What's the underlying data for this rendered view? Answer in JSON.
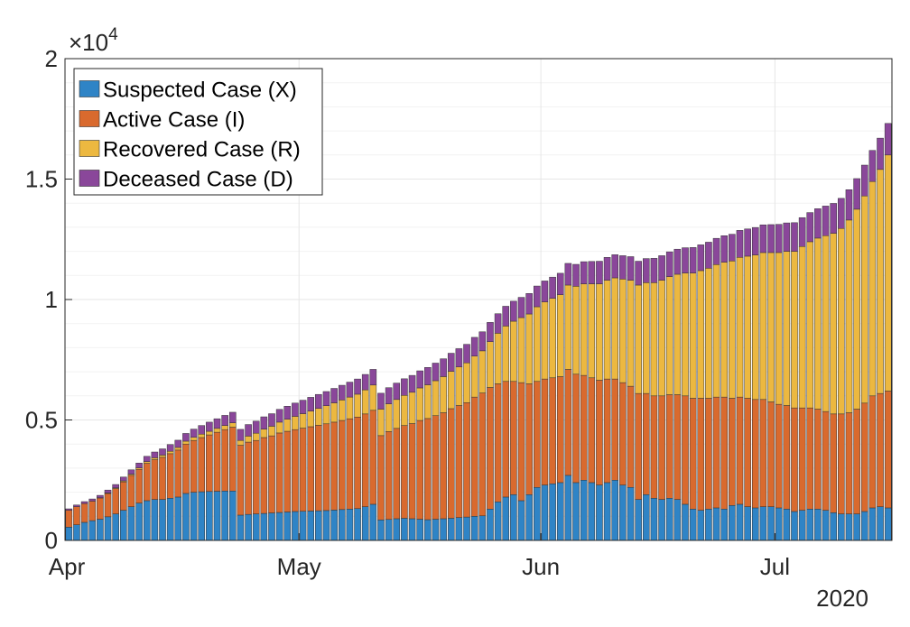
{
  "chart_data": {
    "type": "bar",
    "stacked": true,
    "title": "",
    "xlabel": "",
    "ylabel": "",
    "x_start_date": "2020-04-01",
    "x_tick_labels": [
      "Apr",
      "May",
      "Jun",
      "Jul"
    ],
    "x_secondary_label": "2020",
    "y_tick_labels": [
      "0",
      "0.5",
      "1",
      "1.5",
      "2"
    ],
    "y_exponent_label": "×10",
    "y_exponent_power": "4",
    "ylim": [
      0,
      20000
    ],
    "grid": true,
    "legend_position": "top-left",
    "series": [
      {
        "name": "Suspected Case (X)",
        "color": "#2f84c6",
        "values": [
          550,
          650,
          750,
          820,
          880,
          980,
          1100,
          1250,
          1400,
          1550,
          1650,
          1700,
          1700,
          1750,
          1800,
          1950,
          2000,
          2020,
          2030,
          2040,
          2050,
          2050,
          1050,
          1080,
          1100,
          1120,
          1140,
          1160,
          1180,
          1200,
          1210,
          1220,
          1230,
          1240,
          1260,
          1280,
          1300,
          1320,
          1400,
          1500,
          850,
          870,
          900,
          920,
          900,
          880,
          860,
          880,
          900,
          920,
          950,
          970,
          1000,
          1020,
          1300,
          1600,
          1800,
          1900,
          1650,
          1900,
          2200,
          2300,
          2350,
          2400,
          2700,
          2400,
          2500,
          2400,
          2300,
          2400,
          2500,
          2300,
          2200,
          1700,
          1900,
          1750,
          1700,
          1750,
          1700,
          1500,
          1300,
          1250,
          1300,
          1350,
          1300,
          1450,
          1500,
          1400,
          1350,
          1400,
          1400,
          1350,
          1300,
          1200,
          1250,
          1300,
          1300,
          1250,
          1150,
          1100,
          1100,
          1100,
          1200,
          1350,
          1400,
          1350
        ]
      },
      {
        "name": "Active Case (I)",
        "color": "#d96a2e",
        "values": [
          700,
          750,
          780,
          810,
          880,
          970,
          1050,
          1180,
          1300,
          1400,
          1550,
          1650,
          1750,
          1850,
          1950,
          2050,
          2150,
          2250,
          2350,
          2450,
          2550,
          2650,
          2900,
          3000,
          3050,
          3150,
          3200,
          3300,
          3350,
          3400,
          3450,
          3500,
          3550,
          3600,
          3650,
          3700,
          3750,
          3800,
          3850,
          3900,
          3500,
          3650,
          3750,
          3850,
          3950,
          4100,
          4200,
          4300,
          4400,
          4550,
          4650,
          4750,
          4950,
          5100,
          5050,
          4900,
          4800,
          4700,
          4900,
          4600,
          4400,
          4400,
          4400,
          4400,
          4400,
          4500,
          4350,
          4350,
          4350,
          4300,
          4200,
          4250,
          4200,
          4400,
          4200,
          4250,
          4300,
          4300,
          4350,
          4500,
          4600,
          4650,
          4600,
          4600,
          4650,
          4450,
          4450,
          4500,
          4500,
          4450,
          4350,
          4300,
          4300,
          4300,
          4250,
          4200,
          4150,
          4100,
          4100,
          4150,
          4200,
          4350,
          4500,
          4650,
          4700,
          4850
        ]
      },
      {
        "name": "Recovered Case (R)",
        "color": "#ecb840",
        "values": [
          0,
          0,
          0,
          0,
          10,
          20,
          30,
          40,
          50,
          60,
          70,
          80,
          90,
          100,
          110,
          120,
          130,
          140,
          150,
          160,
          170,
          180,
          200,
          250,
          300,
          350,
          400,
          450,
          500,
          550,
          600,
          650,
          700,
          750,
          800,
          850,
          900,
          950,
          1000,
          1050,
          1100,
          1150,
          1200,
          1250,
          1300,
          1350,
          1400,
          1450,
          1500,
          1550,
          1600,
          1650,
          1700,
          1750,
          1900,
          2100,
          2300,
          2500,
          2700,
          2900,
          3100,
          3200,
          3300,
          3400,
          3500,
          3650,
          3800,
          3900,
          4000,
          4100,
          4200,
          4300,
          4400,
          4500,
          4600,
          4700,
          4800,
          4900,
          5000,
          5100,
          5200,
          5300,
          5400,
          5500,
          5600,
          5700,
          5800,
          5900,
          6000,
          6100,
          6200,
          6300,
          6400,
          6500,
          6700,
          6900,
          7100,
          7300,
          7500,
          7700,
          8000,
          8300,
          8600,
          8900,
          9300,
          9800
        ]
      },
      {
        "name": "Deceased Case (D)",
        "color": "#8a479a",
        "values": [
          60,
          70,
          80,
          90,
          100,
          120,
          140,
          160,
          180,
          200,
          220,
          240,
          260,
          280,
          300,
          320,
          340,
          360,
          380,
          400,
          420,
          440,
          460,
          480,
          500,
          510,
          520,
          530,
          540,
          550,
          560,
          570,
          580,
          590,
          600,
          610,
          620,
          630,
          640,
          650,
          660,
          670,
          680,
          690,
          700,
          710,
          720,
          730,
          740,
          750,
          760,
          770,
          780,
          790,
          800,
          810,
          820,
          830,
          840,
          850,
          860,
          870,
          880,
          890,
          900,
          910,
          920,
          930,
          940,
          950,
          960,
          970,
          980,
          990,
          1000,
          1010,
          1020,
          1030,
          1040,
          1050,
          1060,
          1070,
          1080,
          1090,
          1100,
          1110,
          1120,
          1130,
          1140,
          1150,
          1160,
          1170,
          1180,
          1190,
          1200,
          1210,
          1220,
          1230,
          1240,
          1250,
          1260,
          1270,
          1280,
          1290,
          1300,
          1310
        ]
      }
    ]
  }
}
